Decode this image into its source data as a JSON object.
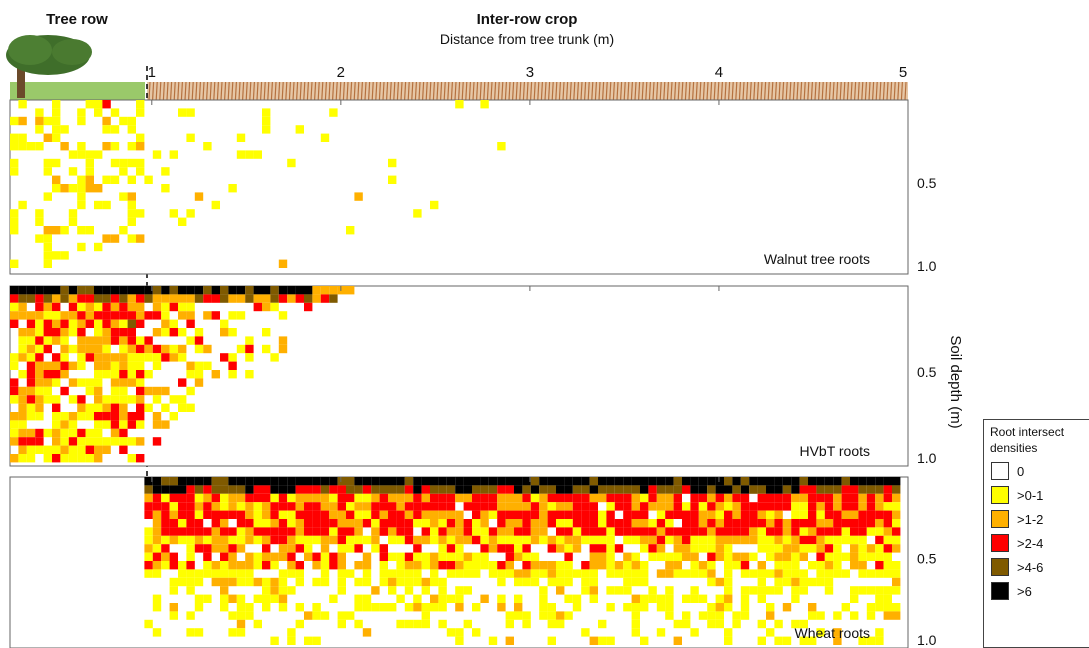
{
  "header": {
    "tree_row": "Tree row",
    "inter_row": "Inter-row crop",
    "x_axis_title": "Distance from tree trunk (m)"
  },
  "y_axis_title": "Soil depth (m)",
  "legend": {
    "title_line1": "Root intersect",
    "title_line2": "densities",
    "items": [
      {
        "label": "0",
        "color": "#ffffff"
      },
      {
        "label": ">0-1",
        "color": "#ffff00"
      },
      {
        "label": ">1-2",
        "color": "#ffb000"
      },
      {
        "label": ">2-4",
        "color": "#ff0000"
      },
      {
        "label": ">4-6",
        "color": "#7f5a00"
      },
      {
        "label": ">6",
        "color": "#000000"
      }
    ]
  },
  "chart_data": {
    "type": "heatmap",
    "x_ticks": [
      "1",
      "2",
      "3",
      "4",
      "5"
    ],
    "y_ticks": [
      "0.5",
      "1.0"
    ],
    "xlabel": "Distance from tree trunk (m)",
    "ylabel": "Soil depth (m)",
    "xlim": [
      0.25,
      5
    ],
    "ylim": [
      0,
      1.0
    ],
    "panels": [
      {
        "name": "Walnut tree roots",
        "x_range_m": [
          0.25,
          3.25
        ],
        "depth_range_m": [
          0,
          1.0
        ],
        "dominant_class": ">0-1",
        "notes": "sparse yellow cells, scattered orange, few red near surface in tree row"
      },
      {
        "name": "HVbT roots",
        "x_range_m": [
          0.25,
          2.0
        ],
        "depth_range_m": [
          0,
          1.0
        ],
        "dominant_class": ">2-4 near surface, >0-1 deeper",
        "notes": "black/dark top layer, dense red-orange in tree row"
      },
      {
        "name": "Wheat roots",
        "x_range_m": [
          0.7,
          5.0
        ],
        "depth_range_m": [
          0,
          1.0
        ],
        "dominant_class": ">2-4 near surface, >0-1 deeper",
        "notes": "no roots in tree row; black/dark top band across inter-row crop"
      }
    ]
  }
}
